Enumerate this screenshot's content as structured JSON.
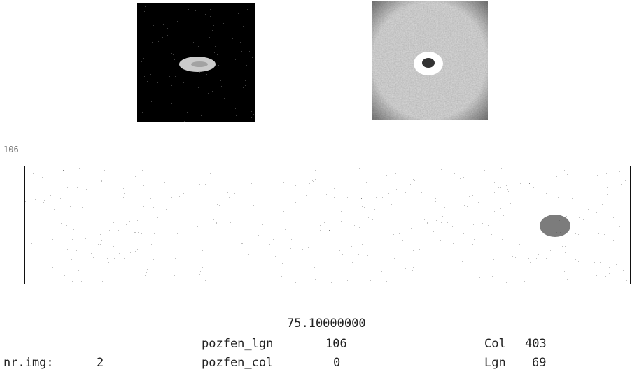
{
  "strip_label": "106",
  "result": "75.10000000",
  "fields": [
    {
      "label": "pozfen_lgn",
      "value": "106"
    },
    {
      "label": "Col",
      "value": "403"
    },
    {
      "label": "nr.img:",
      "value": "2"
    },
    {
      "label": "pozfen_col",
      "value": "0"
    },
    {
      "label": "Lgn",
      "value": "69"
    }
  ]
}
